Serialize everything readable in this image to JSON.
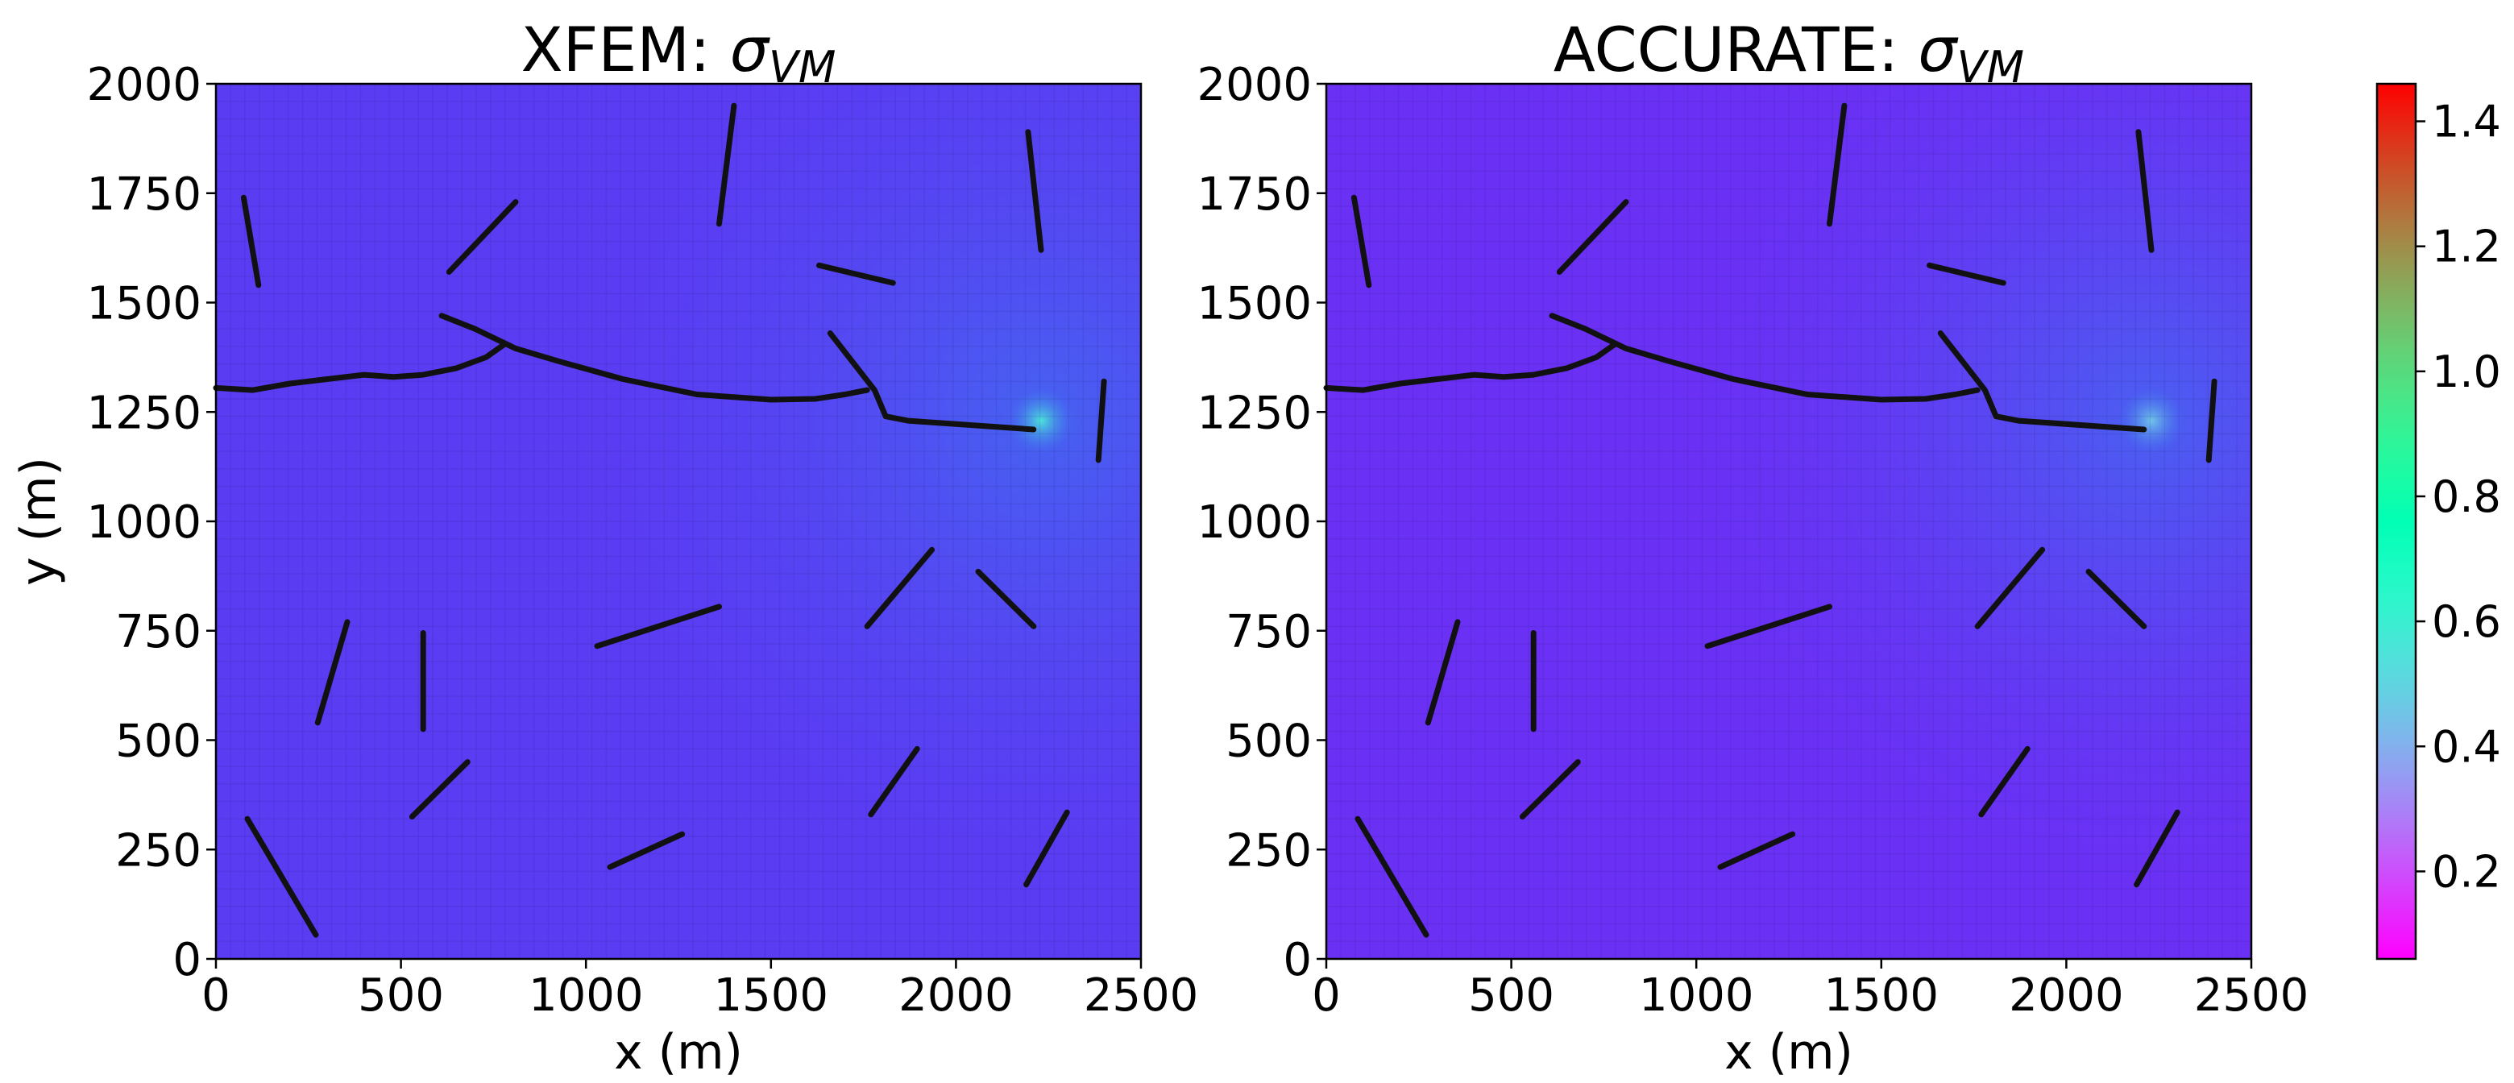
{
  "chart_data": [
    {
      "type": "heatmap",
      "title": "XFEM: ",
      "title_symbol": "σ",
      "title_subscript": "VM",
      "xlabel": "x (m)",
      "ylabel": "y (m)",
      "xlim": [
        0,
        2500
      ],
      "ylim": [
        0,
        2000
      ],
      "xticks": [
        "0",
        "500",
        "1000",
        "1500",
        "2000",
        "2500"
      ],
      "yticks": [
        "0",
        "250",
        "500",
        "750",
        "1000",
        "1250",
        "1500",
        "1750",
        "2000"
      ],
      "mesh_grid": true,
      "base_color": "#5a3cf3",
      "hotspot": {
        "x": 2230,
        "y": 1230,
        "value": 0.55
      },
      "fractures": [
        [
          [
            0,
            1305
          ],
          [
            100,
            1300
          ],
          [
            200,
            1315
          ],
          [
            300,
            1325
          ],
          [
            400,
            1335
          ],
          [
            480,
            1330
          ],
          [
            560,
            1335
          ],
          [
            650,
            1350
          ],
          [
            730,
            1375
          ],
          [
            780,
            1405
          ]
        ],
        [
          [
            610,
            1470
          ],
          [
            700,
            1440
          ],
          [
            810,
            1395
          ],
          [
            930,
            1365
          ],
          [
            1100,
            1325
          ],
          [
            1300,
            1290
          ],
          [
            1500,
            1278
          ],
          [
            1620,
            1280
          ],
          [
            1700,
            1290
          ],
          [
            1760,
            1300
          ]
        ],
        [
          [
            1660,
            1430
          ],
          [
            1780,
            1300
          ],
          [
            1810,
            1240
          ],
          [
            1870,
            1230
          ],
          [
            2210,
            1210
          ]
        ],
        [
          [
            75,
            1740
          ],
          [
            115,
            1540
          ]
        ],
        [
          [
            630,
            1570
          ],
          [
            810,
            1730
          ]
        ],
        [
          [
            1360,
            1680
          ],
          [
            1400,
            1950
          ]
        ],
        [
          [
            2195,
            1890
          ],
          [
            2230,
            1620
          ]
        ],
        [
          [
            1630,
            1585
          ],
          [
            1830,
            1545
          ]
        ],
        [
          [
            2400,
            1320
          ],
          [
            2385,
            1140
          ]
        ],
        [
          [
            275,
            540
          ],
          [
            355,
            770
          ]
        ],
        [
          [
            560,
            745
          ],
          [
            560,
            525
          ]
        ],
        [
          [
            530,
            325
          ],
          [
            680,
            450
          ]
        ],
        [
          [
            85,
            320
          ],
          [
            270,
            55
          ]
        ],
        [
          [
            1030,
            715
          ],
          [
            1360,
            805
          ]
        ],
        [
          [
            1065,
            210
          ],
          [
            1260,
            285
          ]
        ],
        [
          [
            1760,
            760
          ],
          [
            1935,
            935
          ]
        ],
        [
          [
            2060,
            885
          ],
          [
            2210,
            760
          ]
        ],
        [
          [
            1770,
            330
          ],
          [
            1895,
            480
          ]
        ],
        [
          [
            2190,
            170
          ],
          [
            2300,
            335
          ]
        ]
      ]
    },
    {
      "type": "heatmap",
      "title": "ACCURATE: ",
      "title_symbol": "σ",
      "title_subscript": "VM",
      "xlabel": "x (m)",
      "ylabel": "",
      "xlim": [
        0,
        2500
      ],
      "ylim": [
        0,
        2000
      ],
      "xticks": [
        "0",
        "500",
        "1000",
        "1500",
        "2000",
        "2500"
      ],
      "yticks": [
        "0",
        "250",
        "500",
        "750",
        "1000",
        "1250",
        "1500",
        "1750",
        "2000"
      ],
      "mesh_grid": true,
      "base_color": "#6a30f4",
      "hotspot": {
        "x": 2230,
        "y": 1230,
        "value": 0.45
      },
      "fractures": [
        [
          [
            0,
            1305
          ],
          [
            100,
            1300
          ],
          [
            200,
            1315
          ],
          [
            300,
            1325
          ],
          [
            400,
            1335
          ],
          [
            480,
            1330
          ],
          [
            560,
            1335
          ],
          [
            650,
            1350
          ],
          [
            730,
            1375
          ],
          [
            780,
            1405
          ]
        ],
        [
          [
            610,
            1470
          ],
          [
            700,
            1440
          ],
          [
            810,
            1395
          ],
          [
            930,
            1365
          ],
          [
            1100,
            1325
          ],
          [
            1300,
            1290
          ],
          [
            1500,
            1278
          ],
          [
            1620,
            1280
          ],
          [
            1700,
            1290
          ],
          [
            1760,
            1300
          ]
        ],
        [
          [
            1660,
            1430
          ],
          [
            1780,
            1300
          ],
          [
            1810,
            1240
          ],
          [
            1870,
            1230
          ],
          [
            2210,
            1210
          ]
        ],
        [
          [
            75,
            1740
          ],
          [
            115,
            1540
          ]
        ],
        [
          [
            630,
            1570
          ],
          [
            810,
            1730
          ]
        ],
        [
          [
            1360,
            1680
          ],
          [
            1400,
            1950
          ]
        ],
        [
          [
            2195,
            1890
          ],
          [
            2230,
            1620
          ]
        ],
        [
          [
            1630,
            1585
          ],
          [
            1830,
            1545
          ]
        ],
        [
          [
            2400,
            1320
          ],
          [
            2385,
            1140
          ]
        ],
        [
          [
            275,
            540
          ],
          [
            355,
            770
          ]
        ],
        [
          [
            560,
            745
          ],
          [
            560,
            525
          ]
        ],
        [
          [
            530,
            325
          ],
          [
            680,
            450
          ]
        ],
        [
          [
            85,
            320
          ],
          [
            270,
            55
          ]
        ],
        [
          [
            1030,
            715
          ],
          [
            1360,
            805
          ]
        ],
        [
          [
            1065,
            210
          ],
          [
            1260,
            285
          ]
        ],
        [
          [
            1760,
            760
          ],
          [
            1935,
            935
          ]
        ],
        [
          [
            2060,
            885
          ],
          [
            2210,
            760
          ]
        ],
        [
          [
            1770,
            330
          ],
          [
            1895,
            480
          ]
        ],
        [
          [
            2190,
            170
          ],
          [
            2300,
            335
          ]
        ]
      ]
    }
  ],
  "colorbar": {
    "min": 0.06,
    "max": 1.46,
    "ticks": [
      "0.2",
      "0.4",
      "0.6",
      "0.8",
      "1.0",
      "1.2",
      "1.4"
    ],
    "tick_values": [
      0.2,
      0.4,
      0.6,
      0.8,
      1.0,
      1.2,
      1.4
    ],
    "colormap": "rainbow"
  }
}
